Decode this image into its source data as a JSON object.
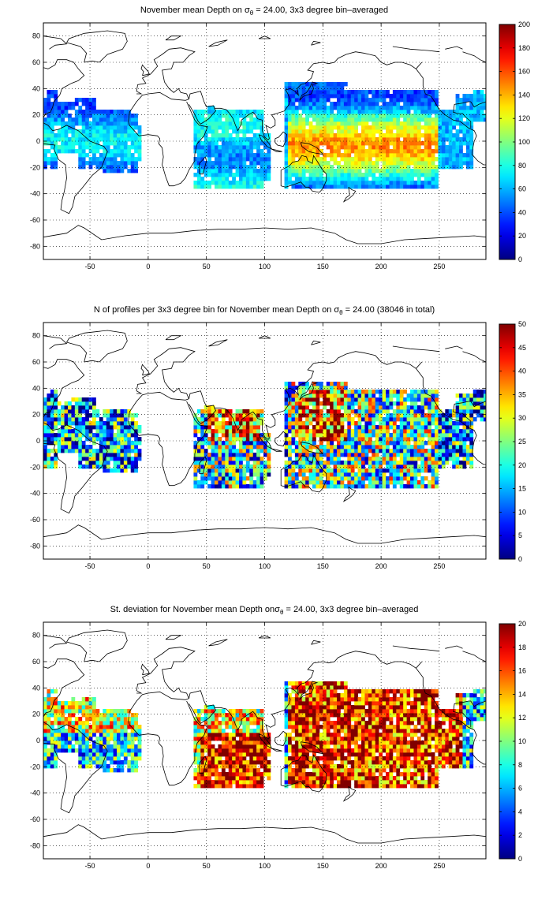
{
  "panels": [
    {
      "title_parts": [
        "November mean Depth on ",
        "σ",
        "θ",
        " = 24.00, 3x3 degree bin–averaged"
      ],
      "x_ticks": [
        -50,
        0,
        50,
        100,
        150,
        200,
        250
      ],
      "y_ticks": [
        80,
        60,
        40,
        20,
        0,
        -20,
        -40,
        -60,
        -80
      ],
      "colorbar_ticks": [
        0,
        20,
        40,
        60,
        80,
        100,
        120,
        140,
        160,
        180,
        200
      ],
      "cmin": 0,
      "cmax": 200
    },
    {
      "title_parts": [
        "N of profiles per 3x3 degree bin for November mean Depth on ",
        "σ",
        "θ",
        " = 24.00 (38046 in total)"
      ],
      "x_ticks": [
        -50,
        0,
        50,
        100,
        150,
        200,
        250
      ],
      "y_ticks": [
        80,
        60,
        40,
        20,
        0,
        -20,
        -40,
        -60,
        -80
      ],
      "colorbar_ticks": [
        0,
        5,
        10,
        15,
        20,
        25,
        30,
        35,
        40,
        45,
        50
      ],
      "cmin": 0,
      "cmax": 50
    },
    {
      "title_parts": [
        "St. deviation for November mean Depth on",
        "σ",
        "θ",
        " = 24.00, 3x3 degree bin–averaged"
      ],
      "x_ticks": [
        -50,
        0,
        50,
        100,
        150,
        200,
        250
      ],
      "y_ticks": [
        80,
        60,
        40,
        20,
        0,
        -20,
        -40,
        -60,
        -80
      ],
      "colorbar_ticks": [
        0,
        2,
        4,
        6,
        8,
        10,
        12,
        14,
        16,
        18,
        20
      ],
      "cmin": 0,
      "cmax": 20
    }
  ],
  "map_extent": {
    "lon": [
      -90,
      290
    ],
    "lat": [
      -90,
      90
    ]
  },
  "colormap": "jet",
  "grid": "dotted",
  "colors": {
    "coast": "#000000",
    "grid": "#000000",
    "background": "#ffffff"
  }
}
